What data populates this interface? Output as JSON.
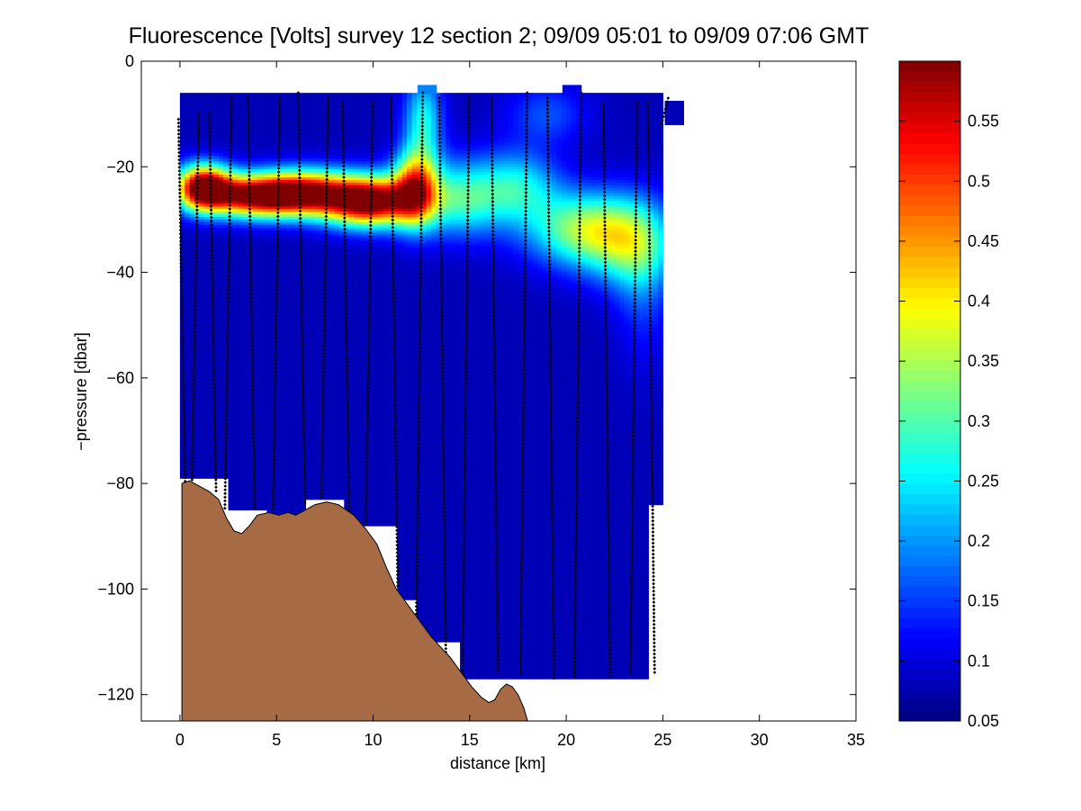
{
  "chart_data": {
    "type": "heatmap",
    "title": "Fluorescence [Volts] survey 12 section 2; 09/09 05:01 to 09/09 07:06 GMT",
    "xlabel": "distance [km]",
    "ylabel": "−pressure [dbar]",
    "xlim": [
      -2,
      35
    ],
    "ylim": [
      -125,
      0
    ],
    "x_ticks": [
      0,
      5,
      10,
      15,
      20,
      25,
      30,
      35
    ],
    "x_tick_labels": [
      "0",
      "5",
      "10",
      "15",
      "20",
      "25",
      "30",
      "35"
    ],
    "y_ticks": [
      0,
      -20,
      -40,
      -60,
      -80,
      -100,
      -120
    ],
    "y_tick_labels": [
      "0",
      "−20",
      "−40",
      "−60",
      "−80",
      "−100",
      "−120"
    ],
    "colorbar": {
      "colormap": "jet",
      "range": [
        0.05,
        0.6
      ],
      "ticks": [
        0.05,
        0.1,
        0.15,
        0.2,
        0.25,
        0.3,
        0.35,
        0.4,
        0.45,
        0.5,
        0.55
      ],
      "tick_labels": [
        "0.05",
        "0.1",
        "0.15",
        "0.2",
        "0.25",
        "0.3",
        "0.35",
        "0.4",
        "0.45",
        "0.5",
        "0.55"
      ]
    },
    "background_value": 0.08,
    "features": [
      {
        "x": 1.2,
        "y": -24,
        "sx": 1.0,
        "sy": 3.0,
        "amp": 0.55
      },
      {
        "x": 3.8,
        "y": -25.5,
        "sx": 1.6,
        "sy": 2.8,
        "amp": 0.48
      },
      {
        "x": 6.5,
        "y": -25,
        "sx": 1.6,
        "sy": 3.0,
        "amp": 0.45
      },
      {
        "x": 9.8,
        "y": -26.5,
        "sx": 1.6,
        "sy": 3.3,
        "amp": 0.56
      },
      {
        "x": 12.2,
        "y": -24,
        "sx": 0.8,
        "sy": 5.0,
        "amp": 0.36
      },
      {
        "x": 12.6,
        "y": -11,
        "sx": 0.7,
        "sy": 6.0,
        "amp": 0.18
      },
      {
        "x": 14.5,
        "y": -26,
        "sx": 1.5,
        "sy": 5.0,
        "amp": 0.2
      },
      {
        "x": 17.5,
        "y": -24,
        "sx": 1.5,
        "sy": 5.0,
        "amp": 0.17
      },
      {
        "x": 21.0,
        "y": -32,
        "sx": 2.0,
        "sy": 5.0,
        "amp": 0.26
      },
      {
        "x": 23.5,
        "y": -35,
        "sx": 1.5,
        "sy": 6.0,
        "amp": 0.18
      },
      {
        "x": 19.0,
        "y": -10,
        "sx": 1.5,
        "sy": 4.0,
        "amp": 0.08
      },
      {
        "x": 24.0,
        "y": -44,
        "sx": 1.0,
        "sy": 10.0,
        "amp": 0.06
      }
    ],
    "profiles": [
      {
        "x": 0.1,
        "top": -11,
        "bottom": -80
      },
      {
        "x": 0.8,
        "top": -10,
        "bottom": -80
      },
      {
        "x": 1.7,
        "top": -10,
        "bottom": -82
      },
      {
        "x": 2.5,
        "top": -7,
        "bottom": -85
      },
      {
        "x": 3.7,
        "top": -7,
        "bottom": -85
      },
      {
        "x": 5.0,
        "top": -7,
        "bottom": -85
      },
      {
        "x": 6.3,
        "top": -6,
        "bottom": -84
      },
      {
        "x": 7.5,
        "top": -7,
        "bottom": -83
      },
      {
        "x": 8.6,
        "top": -8,
        "bottom": -88
      },
      {
        "x": 9.8,
        "top": -8,
        "bottom": -88
      },
      {
        "x": 11.1,
        "top": -7,
        "bottom": -100
      },
      {
        "x": 12.4,
        "top": -6,
        "bottom": -108
      },
      {
        "x": 13.6,
        "top": -7,
        "bottom": -115
      },
      {
        "x": 14.8,
        "top": -7,
        "bottom": -117
      },
      {
        "x": 16.3,
        "top": -7,
        "bottom": -116
      },
      {
        "x": 17.8,
        "top": -6,
        "bottom": -116
      },
      {
        "x": 19.2,
        "top": -7,
        "bottom": -117
      },
      {
        "x": 20.6,
        "top": -6,
        "bottom": -117
      },
      {
        "x": 22.1,
        "top": -8,
        "bottom": -117
      },
      {
        "x": 23.5,
        "top": -8,
        "bottom": -116
      },
      {
        "x": 24.4,
        "top": -8,
        "bottom": -116
      },
      {
        "x": 25.1,
        "top": -7,
        "bottom": -12
      }
    ],
    "data_region": {
      "x_range": [
        0,
        25.1
      ],
      "top": -6,
      "bottom_steps": [
        {
          "x0": 0,
          "x1": 2.5,
          "bottom": -79
        },
        {
          "x0": 2.5,
          "x1": 4.5,
          "bottom": -85
        },
        {
          "x0": 4.5,
          "x1": 6.5,
          "bottom": -86
        },
        {
          "x0": 6.5,
          "x1": 8.5,
          "bottom": -83
        },
        {
          "x0": 8.5,
          "x1": 11.2,
          "bottom": -88
        },
        {
          "x0": 11.2,
          "x1": 12.3,
          "bottom": -102
        },
        {
          "x0": 12.3,
          "x1": 14.5,
          "bottom": -110
        },
        {
          "x0": 14.5,
          "x1": 24.2,
          "bottom": -117
        },
        {
          "x0": 24.2,
          "x1": 25.1,
          "bottom": -84
        }
      ],
      "top_patches": [
        {
          "x0": 12.3,
          "x1": 13.3,
          "top": -4.5
        },
        {
          "x0": 19.8,
          "x1": 20.8,
          "top": -4.5
        },
        {
          "x0": 25.1,
          "x1": 26.1,
          "top": -7.5,
          "bottom": -12
        }
      ]
    },
    "bathymetry": [
      [
        0.1,
        -125
      ],
      [
        0.1,
        -80
      ],
      [
        0.5,
        -79.5
      ],
      [
        1.0,
        -80.5
      ],
      [
        1.5,
        -81.5
      ],
      [
        2.0,
        -83
      ],
      [
        2.4,
        -86.5
      ],
      [
        2.8,
        -89
      ],
      [
        3.2,
        -89.5
      ],
      [
        3.6,
        -88
      ],
      [
        4.0,
        -86
      ],
      [
        4.6,
        -85.5
      ],
      [
        5.1,
        -86
      ],
      [
        5.6,
        -85.5
      ],
      [
        6.0,
        -86
      ],
      [
        6.5,
        -85
      ],
      [
        7.0,
        -84
      ],
      [
        7.6,
        -83.5
      ],
      [
        8.2,
        -84
      ],
      [
        8.6,
        -85
      ],
      [
        9.0,
        -86
      ],
      [
        9.6,
        -88.5
      ],
      [
        10.2,
        -91.5
      ],
      [
        10.7,
        -96
      ],
      [
        11.2,
        -100
      ],
      [
        11.8,
        -103
      ],
      [
        12.4,
        -106
      ],
      [
        13.0,
        -109
      ],
      [
        13.5,
        -111
      ],
      [
        14.0,
        -113
      ],
      [
        14.6,
        -116
      ],
      [
        15.1,
        -118.5
      ],
      [
        15.6,
        -120.5
      ],
      [
        16.0,
        -121.5
      ],
      [
        16.3,
        -121
      ],
      [
        16.6,
        -119
      ],
      [
        16.9,
        -118
      ],
      [
        17.2,
        -118.5
      ],
      [
        17.5,
        -120
      ],
      [
        17.8,
        -122.5
      ],
      [
        18.0,
        -125
      ]
    ]
  },
  "colors": {
    "bathymetry_fill": "#a66a45",
    "cast_markers": "#000000",
    "axis": "#000000",
    "background": "#ffffff"
  }
}
